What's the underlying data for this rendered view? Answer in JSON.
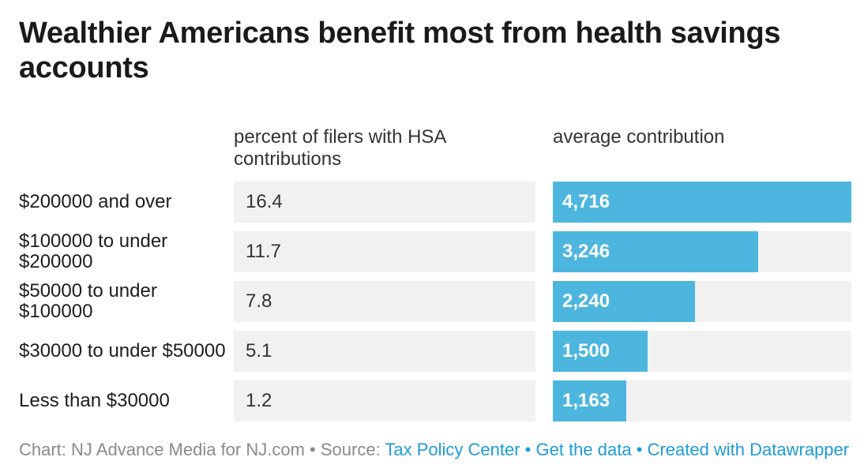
{
  "header": {
    "title": "Wealthier Americans benefit most from health savings accounts"
  },
  "columns": {
    "percent": "percent of filers with HSA contributions",
    "average": "average contribution"
  },
  "rows": [
    {
      "label": "$200000 and over",
      "percent": "16.4",
      "average": "4,716"
    },
    {
      "label": "$100000 to under $200000",
      "percent": "11.7",
      "average": "3,246"
    },
    {
      "label": "$50000 to under $100000",
      "percent": "7.8",
      "average": "2,240"
    },
    {
      "label": "$30000 to under $50000",
      "percent": "5.1",
      "average": "1,500"
    },
    {
      "label": "Less than $30000",
      "percent": "1.2",
      "average": "1,163"
    }
  ],
  "chart_data": {
    "type": "bar",
    "orientation": "horizontal",
    "title": "Wealthier Americans benefit most from health savings accounts",
    "categories": [
      "$200000 and over",
      "$100000 to under $200000",
      "$50000 to under $100000",
      "$30000 to under $50000",
      "Less than $30000"
    ],
    "series": [
      {
        "name": "percent of filers with HSA contributions",
        "values": [
          16.4,
          11.7,
          7.8,
          5.1,
          1.2
        ],
        "display": "table-cell"
      },
      {
        "name": "average contribution",
        "values": [
          4716,
          3246,
          2240,
          1500,
          1163
        ],
        "display": "bar"
      }
    ],
    "bar_axis_max": 4716,
    "bar_value_labels": [
      "4,716",
      "3,246",
      "2,240",
      "1,500",
      "1,163"
    ],
    "grid": false,
    "legend_position": "none"
  },
  "footer": {
    "credit": "Chart: NJ Advance Media for NJ.com • Source: ",
    "separator": " • ",
    "links": [
      {
        "label": "Tax Policy Center"
      },
      {
        "label": "Get the data"
      },
      {
        "label": "Created with Datawrapper"
      }
    ]
  },
  "colors": {
    "bar_blue": "#4db6df",
    "cell_gray": "#f1f1f1",
    "link_blue": "#1e9bd8",
    "footer_gray": "#8a8a8a",
    "title_black": "#1a1a1a",
    "text_dark": "#222222",
    "bar_label_white": "#ffffff",
    "background": "#ffffff"
  }
}
